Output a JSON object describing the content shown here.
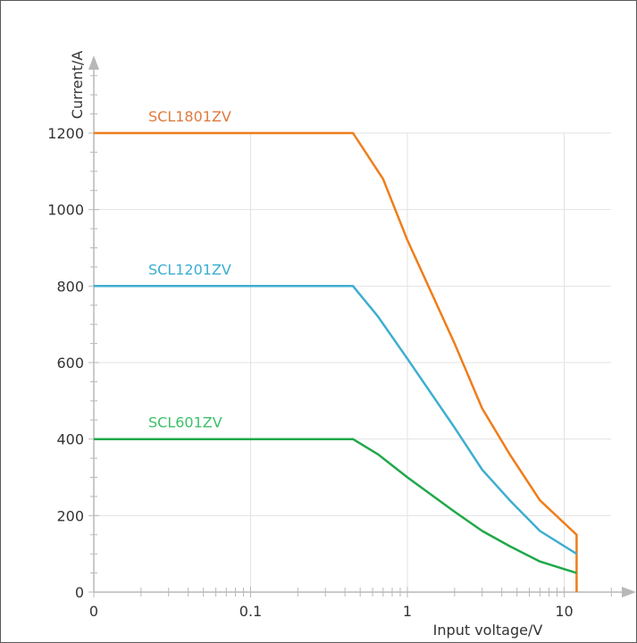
{
  "chart_data": {
    "type": "line",
    "xlabel": "Input voltage/V",
    "ylabel": "Current/A",
    "x_scale": "log",
    "x_ticks": [
      "0",
      "0.1",
      "1",
      "10"
    ],
    "xlim_decades": [
      0.01,
      20
    ],
    "ylim": [
      0,
      1200
    ],
    "y_ticks": [
      0,
      200,
      400,
      600,
      800,
      1000,
      1200
    ],
    "grid": true,
    "series": [
      {
        "name": "SCL1801ZV",
        "color": "#ef7d1a",
        "label_color": "#e07a3c",
        "points": [
          [
            0.01,
            1200
          ],
          [
            0.45,
            1200
          ],
          [
            0.7,
            1080
          ],
          [
            1.0,
            920
          ],
          [
            2.0,
            650
          ],
          [
            3.0,
            480
          ],
          [
            4.5,
            360
          ],
          [
            7.0,
            240
          ],
          [
            12.0,
            150
          ],
          [
            12.0,
            0
          ]
        ]
      },
      {
        "name": "SCL1201ZV",
        "color": "#3eaed0",
        "label_color": "#3aaed0",
        "points": [
          [
            0.01,
            800
          ],
          [
            0.45,
            800
          ],
          [
            0.65,
            720
          ],
          [
            1.0,
            610
          ],
          [
            2.0,
            430
          ],
          [
            3.0,
            320
          ],
          [
            4.5,
            240
          ],
          [
            7.0,
            160
          ],
          [
            12.0,
            100
          ]
        ]
      },
      {
        "name": "SCL601ZV",
        "color": "#20a84a",
        "label_color": "#3cc068",
        "points": [
          [
            0.01,
            400
          ],
          [
            0.45,
            400
          ],
          [
            0.65,
            360
          ],
          [
            1.0,
            300
          ],
          [
            2.0,
            210
          ],
          [
            3.0,
            160
          ],
          [
            4.5,
            120
          ],
          [
            7.0,
            80
          ],
          [
            12.0,
            50
          ]
        ]
      }
    ]
  }
}
